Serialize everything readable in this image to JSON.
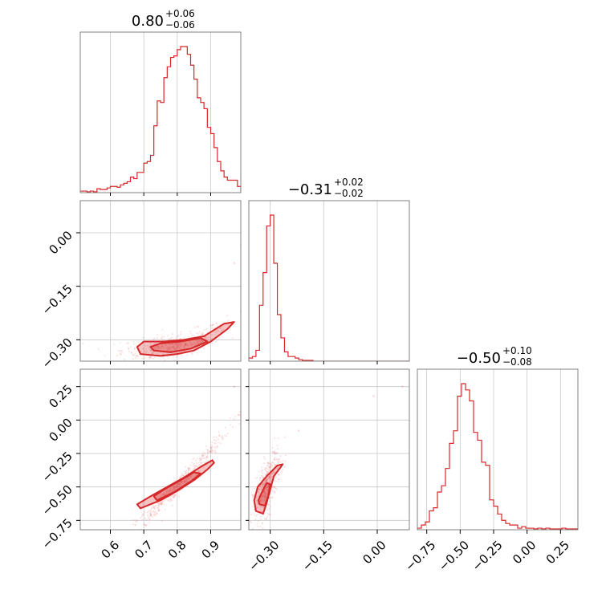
{
  "chart_data": {
    "type": "corner",
    "color": "#d62728",
    "grid": true,
    "parameters": [
      {
        "title": {
          "value": "0.80",
          "plus": "+0.06",
          "minus": "−0.06"
        },
        "range": [
          0.51,
          0.99
        ],
        "ticks": [
          {
            "v": 0.6,
            "label": "0.6"
          },
          {
            "v": 0.7,
            "label": "0.7"
          },
          {
            "v": 0.8,
            "label": "0.8"
          },
          {
            "v": 0.9,
            "label": "0.9"
          }
        ]
      },
      {
        "title": {
          "value": "−0.31",
          "plus": "+0.02",
          "minus": "−0.02"
        },
        "range": [
          -0.36,
          0.09
        ],
        "ticks": [
          {
            "v": 0.0,
            "label": "0.00"
          },
          {
            "v": -0.15,
            "label": "−0.15"
          },
          {
            "v": -0.3,
            "label": "−0.30"
          }
        ]
      },
      {
        "title": {
          "value": "−0.50",
          "plus": "+0.10",
          "minus": "−0.08"
        },
        "range": [
          -0.82,
          0.38
        ],
        "ticks": [
          {
            "v": 0.25,
            "label": "0.25"
          },
          {
            "v": 0.0,
            "label": "0.00"
          },
          {
            "v": -0.25,
            "label": "−0.25"
          },
          {
            "v": -0.5,
            "label": "−0.50"
          },
          {
            "v": -0.75,
            "label": "−0.75"
          }
        ]
      }
    ],
    "histograms": [
      {
        "param": 0,
        "bin_edges": [
          0.51,
          0.52,
          0.53,
          0.54,
          0.55,
          0.56,
          0.57,
          0.58,
          0.59,
          0.6,
          0.61,
          0.62,
          0.63,
          0.64,
          0.65,
          0.66,
          0.67,
          0.68,
          0.69,
          0.7,
          0.71,
          0.72,
          0.73,
          0.74,
          0.75,
          0.76,
          0.77,
          0.78,
          0.79,
          0.8,
          0.81,
          0.82,
          0.83,
          0.84,
          0.85,
          0.86,
          0.87,
          0.88,
          0.89,
          0.9,
          0.91,
          0.92,
          0.93,
          0.94,
          0.95,
          0.96,
          0.97,
          0.98,
          0.99
        ],
        "counts": [
          0.01,
          0.01,
          0.005,
          0.01,
          0.005,
          0.025,
          0.02,
          0.02,
          0.03,
          0.04,
          0.04,
          0.035,
          0.05,
          0.06,
          0.07,
          0.1,
          0.09,
          0.13,
          0.13,
          0.19,
          0.2,
          0.24,
          0.43,
          0.59,
          0.58,
          0.74,
          0.81,
          0.87,
          0.88,
          0.92,
          0.94,
          0.94,
          0.89,
          0.82,
          0.73,
          0.61,
          0.58,
          0.54,
          0.42,
          0.38,
          0.29,
          0.2,
          0.14,
          0.1,
          0.08,
          0.08,
          0.08,
          0.04
        ]
      },
      {
        "param": 1,
        "bin_edges": [
          -0.36,
          -0.35,
          -0.34,
          -0.33,
          -0.32,
          -0.31,
          -0.3,
          -0.29,
          -0.28,
          -0.27,
          -0.26,
          -0.25,
          -0.24,
          -0.23,
          -0.22,
          -0.21,
          -0.2,
          -0.19,
          -0.18,
          -0.17,
          -0.16,
          -0.15,
          -0.14,
          -0.13,
          -0.12,
          -0.11,
          -0.1,
          -0.09,
          -0.08,
          -0.07,
          -0.06,
          -0.05,
          -0.04,
          -0.03,
          -0.02,
          -0.01,
          0.0,
          0.01,
          0.02,
          0.03,
          0.04,
          0.05,
          0.06,
          0.07,
          0.08,
          0.09
        ],
        "counts": [
          0.02,
          0.03,
          0.07,
          0.36,
          0.57,
          0.87,
          0.94,
          0.63,
          0.3,
          0.15,
          0.06,
          0.03,
          0.03,
          0.02,
          0.01,
          0.005,
          0.005,
          0.005,
          0,
          0,
          0,
          0,
          0,
          0,
          0,
          0,
          0,
          0,
          0,
          0,
          0,
          0,
          0,
          0,
          0,
          0,
          0,
          0,
          0,
          0,
          0,
          0,
          0,
          0,
          0
        ]
      },
      {
        "param": 2,
        "bin_edges": [
          -0.82,
          -0.79,
          -0.76,
          -0.73,
          -0.7,
          -0.67,
          -0.64,
          -0.61,
          -0.58,
          -0.55,
          -0.52,
          -0.49,
          -0.46,
          -0.43,
          -0.4,
          -0.37,
          -0.34,
          -0.31,
          -0.28,
          -0.25,
          -0.22,
          -0.19,
          -0.16,
          -0.13,
          -0.1,
          -0.07,
          -0.04,
          -0.01,
          0.02,
          0.05,
          0.08,
          0.11,
          0.14,
          0.17,
          0.2,
          0.23,
          0.26,
          0.29,
          0.32,
          0.35,
          0.38
        ],
        "counts": [
          0.01,
          0.03,
          0.05,
          0.12,
          0.14,
          0.24,
          0.28,
          0.39,
          0.55,
          0.63,
          0.85,
          0.93,
          0.89,
          0.82,
          0.62,
          0.57,
          0.43,
          0.41,
          0.19,
          0.15,
          0.1,
          0.06,
          0.04,
          0.03,
          0.03,
          0.01,
          0.02,
          0.01,
          0.01,
          0.005,
          0.01,
          0.005,
          0.01,
          0.005,
          0.005,
          0.005,
          0.01,
          0.005,
          0.005,
          0.005
        ]
      }
    ],
    "scatter_2d": [
      {
        "x_param": 0,
        "y_param": 1,
        "relation": "y = -0.33 + 1.1*(x-0.7)^2 for x>0.7 else -0.33",
        "x_center": 0.79,
        "x_sd": 0.06,
        "y_noise_sd": 0.012,
        "extra_points": [
          [
            0.99,
            -0.22
          ],
          [
            0.97,
            -0.085
          ],
          [
            0.99,
            -0.035
          ]
        ]
      },
      {
        "x_param": 0,
        "y_param": 2,
        "relation": "y = -0.5 + 2.6*(x-0.8) + 1.4*(x-0.8)^2",
        "x_center": 0.8,
        "x_sd": 0.06,
        "y_noise_sd": 0.025,
        "extra_points": [
          [
            0.97,
            0.25
          ]
        ]
      },
      {
        "x_param": 1,
        "y_param": 2,
        "relation": "y = -0.5 + 5.0*(x+0.31)",
        "x_center": -0.31,
        "x_sd": 0.015,
        "y_noise_sd": 0.07,
        "extra_points": [
          [
            0.07,
            0.25
          ],
          [
            -0.01,
            0.18
          ],
          [
            -0.22,
            -0.08
          ]
        ]
      }
    ],
    "contours_2d": [
      {
        "x_param": 0,
        "y_param": 1,
        "outer": [
          [
            0.69,
            -0.34
          ],
          [
            0.75,
            -0.345
          ],
          [
            0.8,
            -0.34
          ],
          [
            0.85,
            -0.33
          ],
          [
            0.9,
            -0.305
          ],
          [
            0.95,
            -0.27
          ],
          [
            0.97,
            -0.25
          ],
          [
            0.94,
            -0.255
          ],
          [
            0.88,
            -0.29
          ],
          [
            0.82,
            -0.3
          ],
          [
            0.76,
            -0.305
          ],
          [
            0.7,
            -0.305
          ],
          [
            0.68,
            -0.32
          ]
        ],
        "inner": [
          [
            0.73,
            -0.33
          ],
          [
            0.78,
            -0.335
          ],
          [
            0.84,
            -0.325
          ],
          [
            0.89,
            -0.305
          ],
          [
            0.87,
            -0.295
          ],
          [
            0.81,
            -0.305
          ],
          [
            0.75,
            -0.31
          ],
          [
            0.72,
            -0.32
          ]
        ]
      },
      {
        "x_param": 0,
        "y_param": 2,
        "outer": [
          [
            0.69,
            -0.66
          ],
          [
            0.75,
            -0.6
          ],
          [
            0.8,
            -0.53
          ],
          [
            0.85,
            -0.45
          ],
          [
            0.89,
            -0.37
          ],
          [
            0.91,
            -0.32
          ],
          [
            0.905,
            -0.3
          ],
          [
            0.87,
            -0.35
          ],
          [
            0.82,
            -0.43
          ],
          [
            0.77,
            -0.5
          ],
          [
            0.72,
            -0.57
          ],
          [
            0.68,
            -0.63
          ]
        ],
        "inner": [
          [
            0.74,
            -0.6
          ],
          [
            0.79,
            -0.54
          ],
          [
            0.84,
            -0.46
          ],
          [
            0.87,
            -0.4
          ],
          [
            0.85,
            -0.39
          ],
          [
            0.81,
            -0.45
          ],
          [
            0.76,
            -0.52
          ],
          [
            0.73,
            -0.57
          ]
        ]
      },
      {
        "x_param": 1,
        "y_param": 2,
        "outer": [
          [
            -0.34,
            -0.68
          ],
          [
            -0.32,
            -0.7
          ],
          [
            -0.31,
            -0.62
          ],
          [
            -0.3,
            -0.52
          ],
          [
            -0.29,
            -0.42
          ],
          [
            -0.27,
            -0.35
          ],
          [
            -0.265,
            -0.33
          ],
          [
            -0.28,
            -0.34
          ],
          [
            -0.31,
            -0.42
          ],
          [
            -0.335,
            -0.5
          ],
          [
            -0.345,
            -0.6
          ]
        ],
        "inner": [
          [
            -0.33,
            -0.63
          ],
          [
            -0.315,
            -0.64
          ],
          [
            -0.305,
            -0.56
          ],
          [
            -0.3,
            -0.48
          ],
          [
            -0.31,
            -0.47
          ],
          [
            -0.325,
            -0.55
          ],
          [
            -0.333,
            -0.6
          ]
        ]
      }
    ]
  }
}
